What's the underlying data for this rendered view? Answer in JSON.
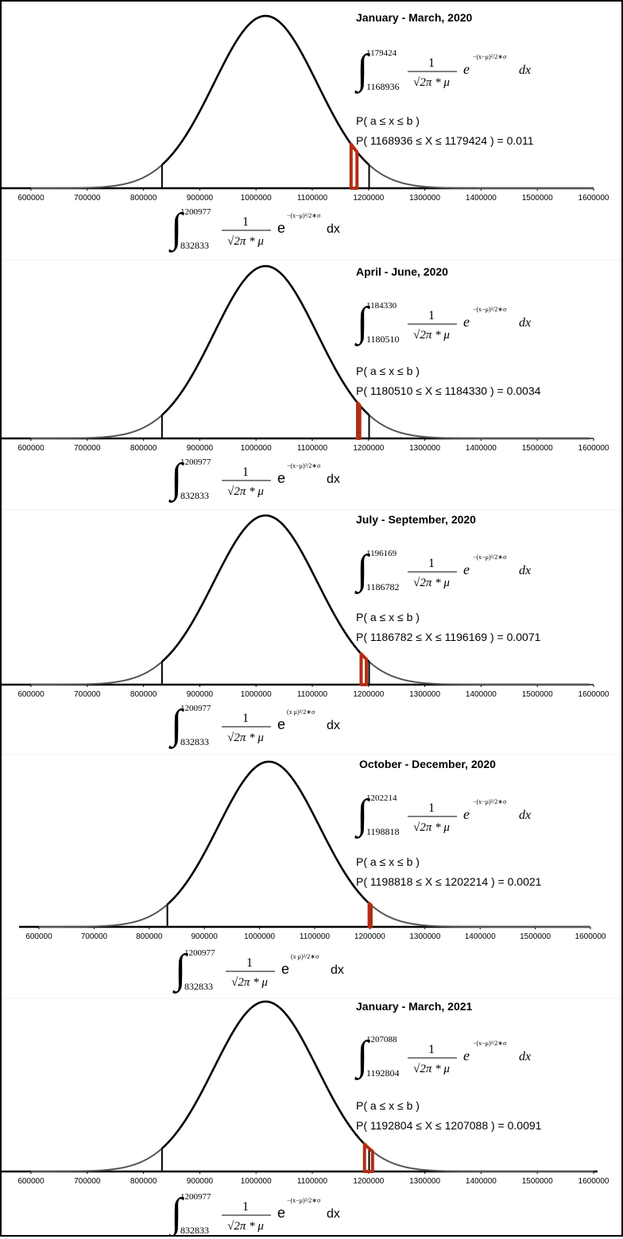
{
  "chart_data": [
    {
      "type": "area",
      "title": "January - March, 2020",
      "ticks": [
        "600000",
        "700000",
        "800000",
        "900000",
        "1000000",
        "1100000",
        "1200000",
        "1300000",
        "1400000",
        "1500000",
        "1600000"
      ],
      "xlim": [
        600000,
        1600000
      ],
      "grid": false,
      "curve": {
        "mean": 1016905,
        "sd": 92072
      },
      "reference_interval": [
        832833,
        1200977
      ],
      "highlight_interval": [
        1168936,
        1179424
      ],
      "highlight_color": "#b32d12",
      "formula_top": {
        "upper": "1179424",
        "lower": "1168936",
        "numerator": "1",
        "denominator": "√2π * μ",
        "exponent": "−(x−μ)²/2∗σ",
        "dx": "dx"
      },
      "prob_general": "P( a ≤ x ≤ b )",
      "prob_specific": "P( 1168936 ≤ X ≤ 1179424 ) = 0.011",
      "probability": 0.011,
      "formula_bottom": {
        "upper": "1200977",
        "lower": "832833",
        "numerator": "1",
        "denominator": "√2π * μ",
        "exponent": "−(x−μ)²/2∗σ",
        "dx": "dx"
      }
    },
    {
      "type": "area",
      "title": "April - June, 2020",
      "ticks": [
        "600000",
        "700000",
        "800000",
        "900000",
        "1000000",
        "1100000",
        "1200000",
        "1300000",
        "1400000",
        "1500000",
        "1600000"
      ],
      "xlim": [
        600000,
        1600000
      ],
      "grid": false,
      "curve": {
        "mean": 1016905,
        "sd": 92072
      },
      "reference_interval": [
        832833,
        1200977
      ],
      "highlight_interval": [
        1180510,
        1184330
      ],
      "highlight_color": "#b32d12",
      "formula_top": {
        "upper": "1184330",
        "lower": "1180510",
        "numerator": "1",
        "denominator": "√2π * μ",
        "exponent": "−(x−μ)²/2∗σ",
        "dx": "dx"
      },
      "prob_general": "P( a ≤ x ≤ b )",
      "prob_specific": "P( 1180510 ≤ X ≤ 1184330 ) = 0.0034",
      "probability": 0.0034,
      "formula_bottom": {
        "upper": "1200977",
        "lower": "832833",
        "numerator": "1",
        "denominator": "√2π * μ",
        "exponent": "−(x−μ)²/2∗σ",
        "dx": "dx"
      }
    },
    {
      "type": "area",
      "title": "July - September, 2020",
      "ticks": [
        "600000",
        "700000",
        "800000",
        "900000",
        "1000000",
        "1100000",
        "1200000",
        "1300000",
        "1400000",
        "1500000",
        "1600000"
      ],
      "xlim": [
        600000,
        1600000
      ],
      "grid": false,
      "curve": {
        "mean": 1016905,
        "sd": 92072
      },
      "reference_interval": [
        832833,
        1200977
      ],
      "highlight_interval": [
        1186782,
        1196169
      ],
      "highlight_color": "#b32d12",
      "formula_top": {
        "upper": "1196169",
        "lower": "1186782",
        "numerator": "1",
        "denominator": "√2π * μ",
        "exponent": "−(x−μ)²/2∗σ",
        "dx": "dx"
      },
      "prob_general": "P( a ≤ x ≤ b )",
      "prob_specific": "P( 1186782 ≤ X ≤ 1196169 ) = 0.0071",
      "probability": 0.0071,
      "formula_bottom": {
        "upper": "1200977",
        "lower": "832833",
        "numerator": "1",
        "denominator": "√2π * μ",
        "exponent": "(x μ)²/2∗σ",
        "dx": "dx"
      }
    },
    {
      "type": "area",
      "title": "October - December, 2020",
      "ticks": [
        "600000",
        "700000",
        "800000",
        "900000",
        "1000000",
        "1100000",
        "1200000",
        "1300000",
        "1400000",
        "1500000",
        "1600000"
      ],
      "xlim": [
        600000,
        1600000
      ],
      "grid": false,
      "curve": {
        "mean": 1016905,
        "sd": 92072
      },
      "reference_interval": [
        832833,
        1200977
      ],
      "highlight_interval": [
        1198818,
        1202214
      ],
      "highlight_color": "#b32d12",
      "formula_top": {
        "upper": "1202214",
        "lower": "1198818",
        "numerator": "1",
        "denominator": "√2π * μ",
        "exponent": "−(x−μ)²/2∗σ",
        "dx": "dx"
      },
      "prob_general": "P( a ≤ x ≤ b )",
      "prob_specific": "P( 1198818 ≤ X ≤ 1202214 ) = 0.0021",
      "probability": 0.0021,
      "formula_bottom": {
        "upper": "1200977",
        "lower": "832833",
        "numerator": "1",
        "denominator": "√2π * μ",
        "exponent": "(x μ)²/2∗σ",
        "dx": "dx"
      }
    },
    {
      "type": "area",
      "title": "January - March, 2021",
      "ticks": [
        "600000",
        "700000",
        "800000",
        "900000",
        "1000000",
        "1100000",
        "1200000",
        "1300000",
        "1400000",
        "1500000",
        "1600000"
      ],
      "xlim": [
        600000,
        1600000
      ],
      "grid": false,
      "curve": {
        "mean": 1016905,
        "sd": 92072
      },
      "reference_interval": [
        832833,
        1200977
      ],
      "highlight_interval": [
        1192804,
        1207088
      ],
      "highlight_color": "#b32d12",
      "formula_top": {
        "upper": "1207088",
        "lower": "1192804",
        "numerator": "1",
        "denominator": "√2π * μ",
        "exponent": "−(x−μ)²/2∗σ",
        "dx": "dx"
      },
      "prob_general": "P( a ≤ x ≤ b )",
      "prob_specific": "P( 1192804 ≤ X ≤ 1207088 ) = 0.0091",
      "probability": 0.0091,
      "formula_bottom": {
        "upper": "1200977",
        "lower": "832833",
        "numerator": "1",
        "denominator": "√2π * μ",
        "exponent": "−(x−μ)²/2∗σ",
        "dx": "dx"
      }
    }
  ]
}
